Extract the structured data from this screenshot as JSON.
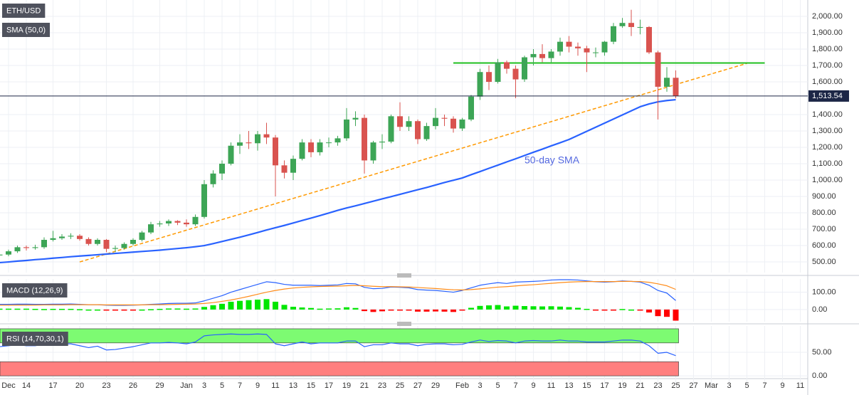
{
  "chart_data": [
    {
      "type": "candlestick",
      "title": "ETH/USD",
      "up_color": "#3da556",
      "down_color": "#d9534f",
      "grid": true,
      "categories": [
        null,
        "Dec",
        null,
        "14",
        null,
        null,
        "17",
        null,
        null,
        "20",
        null,
        null,
        "23",
        null,
        null,
        "26",
        null,
        null,
        "29",
        null,
        null,
        "Jan",
        null,
        "3",
        null,
        "5",
        null,
        "7",
        null,
        "9",
        null,
        "11",
        null,
        "13",
        null,
        "15",
        null,
        "17",
        null,
        "19",
        null,
        "21",
        null,
        "23",
        null,
        "25",
        null,
        "27",
        null,
        "29",
        null,
        null,
        "Feb",
        null,
        "3",
        null,
        "5",
        null,
        "7",
        null,
        "9",
        null,
        "11",
        null,
        "13",
        null,
        "15",
        null,
        "17",
        null,
        "19",
        null,
        "21",
        null,
        "23",
        null,
        "25",
        null,
        "27",
        null,
        "Mar",
        null,
        "3",
        null,
        "5",
        null,
        "7",
        null,
        "9",
        null,
        "11"
      ],
      "open": [
        540,
        545,
        565,
        590,
        585,
        590,
        635,
        645,
        655,
        660,
        640,
        610,
        635,
        580,
        585,
        610,
        635,
        680,
        730,
        735,
        750,
        740,
        730,
        775,
        975,
        1040,
        1100,
        1210,
        1230,
        1225,
        1280,
        1260,
        1090,
        1045,
        1130,
        1230,
        1170,
        1230,
        1230,
        1255,
        1370,
        1380,
        1120,
        1230,
        1235,
        1390,
        1325,
        1360,
        1250,
        1330,
        1380,
        1375,
        1315,
        1370,
        1510,
        1660,
        1600,
        1720,
        1680,
        1615,
        1750,
        1770,
        1745,
        1785,
        1845,
        1815,
        1805,
        1780,
        1780,
        1845,
        1940,
        1960,
        1935,
        1935,
        1780,
        1570,
        1625,
        null,
        null,
        null,
        null,
        null,
        null,
        null,
        null,
        null,
        null,
        null,
        null,
        null,
        null
      ],
      "high": [
        560,
        575,
        600,
        600,
        605,
        650,
        690,
        670,
        675,
        670,
        650,
        645,
        640,
        600,
        620,
        645,
        690,
        745,
        750,
        760,
        755,
        760,
        790,
        1000,
        1060,
        1120,
        1230,
        1280,
        1300,
        1300,
        1350,
        1275,
        1120,
        1150,
        1250,
        1250,
        1250,
        1260,
        1270,
        1440,
        1420,
        1400,
        1240,
        1280,
        1400,
        1475,
        1390,
        1370,
        1350,
        1440,
        1400,
        1390,
        1380,
        1520,
        1680,
        1700,
        1740,
        1730,
        1700,
        1760,
        1800,
        1830,
        1800,
        1870,
        1880,
        1840,
        1820,
        1810,
        1850,
        1960,
        1990,
        2040,
        1980,
        1940,
        1790,
        1690,
        1670,
        null,
        null,
        null,
        null,
        null,
        null,
        null,
        null,
        null,
        null,
        null,
        null,
        null,
        null
      ],
      "low": [
        525,
        535,
        555,
        570,
        575,
        580,
        625,
        635,
        640,
        630,
        600,
        600,
        560,
        560,
        575,
        600,
        625,
        670,
        715,
        720,
        725,
        715,
        720,
        765,
        955,
        1000,
        1090,
        1160,
        1190,
        1180,
        1220,
        900,
        1010,
        1000,
        1120,
        1140,
        1150,
        1200,
        1210,
        1240,
        1330,
        1040,
        1100,
        1190,
        1225,
        1300,
        1300,
        1220,
        1240,
        1310,
        1330,
        1290,
        1300,
        1360,
        1490,
        1550,
        1590,
        1650,
        1500,
        1600,
        1700,
        1720,
        1720,
        1760,
        1780,
        1760,
        1660,
        1750,
        1760,
        1830,
        1930,
        1880,
        1890,
        1770,
        1370,
        1540,
        1500,
        null,
        null,
        null,
        null,
        null,
        null,
        null,
        null,
        null,
        null,
        null,
        null,
        null,
        null
      ],
      "close": [
        545,
        565,
        590,
        585,
        590,
        635,
        645,
        655,
        660,
        640,
        610,
        635,
        580,
        585,
        610,
        635,
        680,
        730,
        735,
        750,
        740,
        730,
        775,
        975,
        1040,
        1100,
        1210,
        1230,
        1225,
        1280,
        1260,
        1090,
        1045,
        1130,
        1230,
        1170,
        1230,
        1230,
        1255,
        1370,
        1380,
        1120,
        1230,
        1235,
        1390,
        1325,
        1360,
        1250,
        1330,
        1380,
        1375,
        1315,
        1370,
        1510,
        1660,
        1600,
        1720,
        1680,
        1615,
        1750,
        1770,
        1745,
        1785,
        1845,
        1815,
        1805,
        1780,
        1780,
        1845,
        1940,
        1960,
        1935,
        1935,
        1780,
        1570,
        1625,
        1513.54,
        null,
        null,
        null,
        null,
        null,
        null,
        null,
        null,
        null,
        null,
        null,
        null,
        null,
        null
      ],
      "series": [
        {
          "name": "SMA (50,0)",
          "color": "#2962ff",
          "values": [
            496,
            500,
            505,
            509,
            514,
            518,
            523,
            527,
            532,
            536,
            540,
            544,
            548,
            552,
            556,
            560,
            564,
            568,
            572,
            577,
            582,
            587,
            593,
            600,
            612,
            625,
            638,
            651,
            665,
            680,
            695,
            709,
            723,
            738,
            753,
            768,
            783,
            799,
            815,
            830,
            843,
            857,
            871,
            885,
            899,
            913,
            927,
            941,
            955,
            970,
            985,
            999,
            1013,
            1033,
            1052,
            1072,
            1091,
            1111,
            1130,
            1150,
            1170,
            1189,
            1209,
            1228,
            1248,
            1273,
            1298,
            1323,
            1348,
            1373,
            1398,
            1423,
            1448,
            1465,
            1478,
            1486,
            1491,
            null,
            null,
            null,
            null,
            null,
            null,
            null,
            null,
            null,
            null,
            null,
            null,
            null,
            null
          ]
        }
      ],
      "lines": [
        {
          "color": "#ff9900",
          "dashed": true,
          "x": [
            9,
            84
          ],
          "values": [
            500,
            1713
          ]
        },
        {
          "color": "#1fbf1f",
          "dashed": false,
          "x": [
            51,
            86
          ],
          "values": [
            1715,
            1715
          ]
        }
      ],
      "annotations": [
        {
          "text": "50-day SMA",
          "color": "#5468e0"
        }
      ],
      "last_price": {
        "value": 1513.54,
        "label": "1,513.54",
        "color": "#1c2646"
      },
      "ylim": [
        435,
        2100
      ],
      "yticks": [
        {
          "value": 500,
          "label": "500.00"
        },
        {
          "value": 600,
          "label": "600.00"
        },
        {
          "value": 700,
          "label": "700.00"
        },
        {
          "value": 800,
          "label": "800.00"
        },
        {
          "value": 900,
          "label": "900.00"
        },
        {
          "value": 1000,
          "label": "1,000.00"
        },
        {
          "value": 1100,
          "label": "1,100.00"
        },
        {
          "value": 1200,
          "label": "1,200.00"
        },
        {
          "value": 1300,
          "label": "1,300.00"
        },
        {
          "value": 1400,
          "label": "1,400.00"
        },
        {
          "value": 1600,
          "label": "1,600.00"
        },
        {
          "value": 1700,
          "label": "1,700.00"
        },
        {
          "value": 1800,
          "label": "1,800.00"
        },
        {
          "value": 1900,
          "label": "1,900.00"
        },
        {
          "value": 2000,
          "label": "2,000.00"
        }
      ]
    },
    {
      "type": "macd",
      "title": "MACD (12,26,9)",
      "grid": true,
      "series": [
        {
          "kind": "histogram",
          "color": "#00e600",
          "negative_color": "#ff0000",
          "values": [
            5,
            5,
            5,
            5,
            4,
            3,
            4,
            4,
            4,
            2,
            0,
            0,
            -2,
            -3,
            -3,
            -2,
            0,
            2,
            4,
            6,
            6,
            5,
            6,
            15,
            25,
            33,
            45,
            50,
            54,
            57,
            60,
            45,
            27,
            16,
            12,
            9,
            5,
            6,
            7,
            13,
            9,
            -9,
            -14,
            -10,
            -2,
            -3,
            -5,
            -12,
            -12,
            -11,
            -12,
            -14,
            -3,
            10,
            21,
            24,
            26,
            18,
            22,
            20,
            19,
            18,
            19,
            17,
            14,
            10,
            4,
            -1,
            -3,
            -1,
            3,
            0,
            -3,
            -17,
            -38,
            -42,
            -64,
            null,
            null,
            null,
            null,
            null,
            null,
            null,
            null,
            null,
            null,
            null,
            null,
            null,
            null
          ]
        },
        {
          "kind": "line",
          "color": "#2962ff",
          "values": [
            30,
            30,
            31,
            31,
            30,
            30,
            31,
            31,
            32,
            30,
            28,
            28,
            25,
            24,
            24,
            25,
            27,
            30,
            32,
            35,
            36,
            36,
            38,
            50,
            65,
            80,
            100,
            115,
            130,
            145,
            160,
            155,
            145,
            140,
            140,
            140,
            138,
            140,
            142,
            150,
            148,
            128,
            120,
            122,
            130,
            128,
            125,
            115,
            112,
            110,
            105,
            100,
            110,
            125,
            140,
            148,
            155,
            150,
            158,
            160,
            162,
            165,
            170,
            172,
            172,
            170,
            165,
            160,
            158,
            160,
            165,
            162,
            158,
            140,
            110,
            95,
            52,
            null,
            null,
            null,
            null,
            null,
            null,
            null,
            null,
            null,
            null,
            null,
            null,
            null,
            null
          ]
        },
        {
          "kind": "line",
          "color": "#ff8c1a",
          "values": [
            25,
            25,
            26,
            26,
            26,
            27,
            27,
            27,
            28,
            28,
            28,
            28,
            27,
            27,
            27,
            27,
            27,
            28,
            28,
            29,
            30,
            31,
            32,
            35,
            40,
            47,
            55,
            65,
            76,
            88,
            100,
            110,
            118,
            124,
            128,
            131,
            133,
            134,
            135,
            137,
            139,
            137,
            134,
            132,
            132,
            131,
            130,
            127,
            124,
            121,
            117,
            114,
            113,
            115,
            119,
            124,
            129,
            132,
            136,
            140,
            143,
            147,
            151,
            155,
            158,
            160,
            161,
            161,
            161,
            161,
            162,
            162,
            161,
            157,
            148,
            137,
            116,
            null,
            null,
            null,
            null,
            null,
            null,
            null,
            null,
            null,
            null,
            null,
            null,
            null,
            null
          ]
        }
      ],
      "ylim": [
        -70,
        176
      ],
      "yticks": [
        {
          "value": 100,
          "label": "100.00"
        },
        {
          "value": 0,
          "label": "0.00"
        }
      ]
    },
    {
      "type": "line",
      "title": "RSI (14,70,30,1)",
      "grid": true,
      "bands": [
        {
          "from": 70,
          "to": 100,
          "color": "#7dfb72"
        },
        {
          "from": 0,
          "to": 30,
          "color": "#ff7f7f"
        }
      ],
      "series": [
        {
          "color": "#2962ff",
          "values": [
            62,
            64,
            66,
            64,
            64,
            67,
            68,
            68,
            68,
            64,
            60,
            63,
            55,
            56,
            59,
            62,
            66,
            70,
            70,
            71,
            70,
            68,
            72,
            85,
            87,
            88,
            89,
            88,
            88,
            89,
            88,
            68,
            64,
            68,
            72,
            68,
            70,
            70,
            70,
            74,
            74,
            62,
            66,
            66,
            70,
            68,
            68,
            64,
            67,
            68,
            68,
            66,
            67,
            72,
            76,
            73,
            75,
            74,
            70,
            74,
            75,
            74,
            74,
            76,
            74,
            74,
            72,
            72,
            72,
            74,
            76,
            76,
            74,
            64,
            48,
            50,
            43,
            null,
            null,
            null,
            null,
            null,
            null,
            null,
            null,
            null,
            null,
            null,
            null,
            null,
            null
          ]
        }
      ],
      "ylim": [
        -18,
        106
      ],
      "yticks": [
        {
          "value": 50,
          "label": "50.00"
        },
        {
          "value": 0,
          "label": "0.00"
        }
      ]
    }
  ]
}
